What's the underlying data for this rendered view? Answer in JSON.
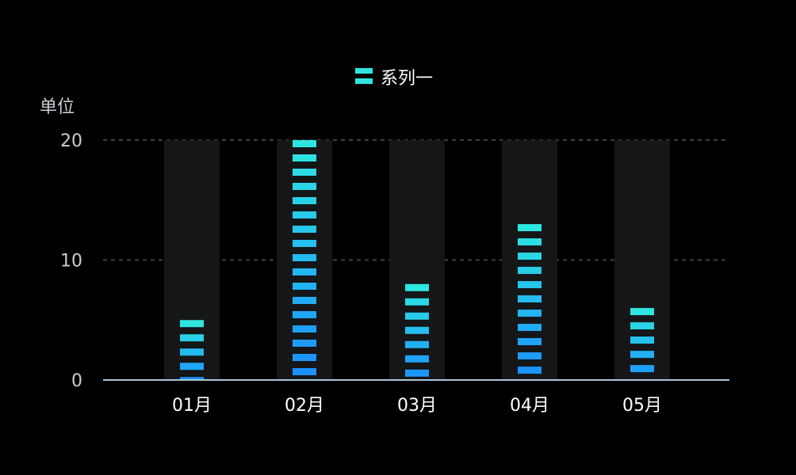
{
  "chart_data": {
    "type": "bar",
    "categories": [
      "01月",
      "02月",
      "03月",
      "04月",
      "05月"
    ],
    "series": [
      {
        "name": "系列一",
        "values": [
          5,
          20,
          8,
          13,
          6
        ]
      }
    ],
    "ylabel": "单位",
    "ylim": [
      0,
      20
    ],
    "yticks": [
      0,
      10,
      20
    ],
    "grid": true,
    "legend": "top-center",
    "background_max": 20,
    "colors": {
      "background": "#000000",
      "bar_top": "#2ee6e0",
      "bar_bottom": "#1a8cff",
      "shadow": "#141618",
      "gridline": "#555555",
      "axis_line": "#a9c6d8"
    }
  }
}
